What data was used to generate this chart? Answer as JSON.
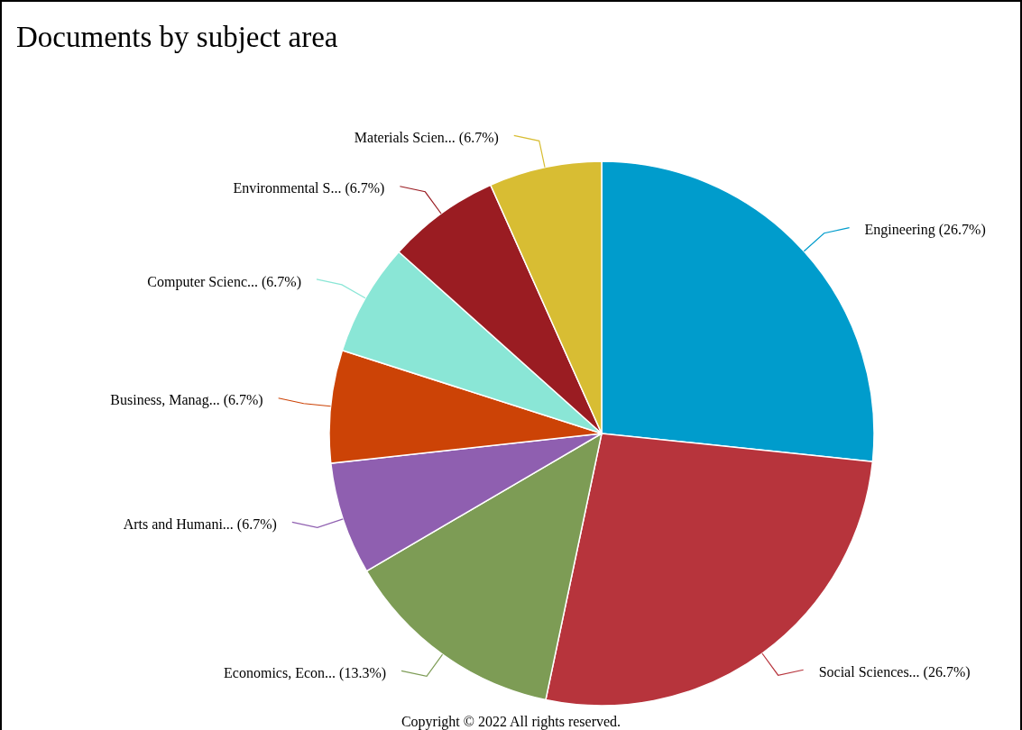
{
  "chart_data": {
    "type": "pie",
    "title": "Documents by subject area",
    "categories": [
      "Engineering",
      "Social Sciences...",
      "Economics, Econ...",
      "Arts and Humani...",
      "Business, Manag...",
      "Computer Scienc...",
      "Environmental S...",
      "Materials Scien..."
    ],
    "values": [
      26.7,
      26.7,
      13.3,
      6.7,
      6.7,
      6.7,
      6.7,
      6.7
    ],
    "value_labels": [
      "(26.7%)",
      "(26.7%)",
      "(13.3%)",
      "(6.7%)",
      "(6.7%)",
      "(6.7%)",
      "(6.7%)",
      "(6.7%)"
    ],
    "colors": [
      "#009ccc",
      "#b7343c",
      "#7d9c55",
      "#8f5fb0",
      "#cc4306",
      "#8ae6d6",
      "#9a1c22",
      "#d8bd33"
    ],
    "annotations": [
      "Copyright © 2022 All rights reserved."
    ]
  }
}
